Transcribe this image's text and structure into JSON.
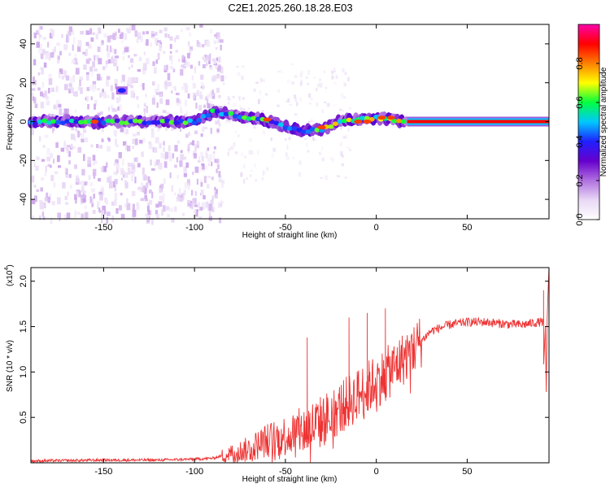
{
  "figure_title": "C2E1.2025.260.18.28.E03",
  "chart_data": [
    {
      "type": "heatmap",
      "name": "spectrogram",
      "xlabel": "Height of straight line (km)",
      "ylabel": "Frequency (Hz)",
      "xlim": [
        -190,
        95
      ],
      "ylim": [
        -50,
        50
      ],
      "xticks": [
        -150,
        -100,
        -50,
        0,
        50
      ],
      "yticks": [
        -40,
        -20,
        0,
        20,
        40
      ],
      "colorbar": {
        "label": "Normalized spectral amplitude",
        "range": [
          0,
          1
        ],
        "ticks": [
          "0.0",
          "0.2",
          "0.4",
          "0.6",
          "0.8"
        ],
        "tick_values": [
          0.0,
          0.2,
          0.4,
          0.6,
          0.8
        ],
        "colormap": [
          "#ffffff",
          "#e8d8f5",
          "#b070e0",
          "#6600cc",
          "#2020ff",
          "#00c8ff",
          "#00ff40",
          "#ffff00",
          "#ff8000",
          "#ff0000",
          "#ff00aa"
        ]
      },
      "ridge_track": [
        {
          "x": -190,
          "f": 0
        },
        {
          "x": -150,
          "f": 0
        },
        {
          "x": -120,
          "f": 0
        },
        {
          "x": -100,
          "f": 0
        },
        {
          "x": -90,
          "f": 5
        },
        {
          "x": -80,
          "f": 4
        },
        {
          "x": -70,
          "f": 2
        },
        {
          "x": -60,
          "f": 0
        },
        {
          "x": -50,
          "f": -3
        },
        {
          "x": -40,
          "f": -5
        },
        {
          "x": -30,
          "f": -4
        },
        {
          "x": -20,
          "f": 0
        },
        {
          "x": -10,
          "f": 1
        },
        {
          "x": 0,
          "f": 2
        },
        {
          "x": 10,
          "f": 1
        },
        {
          "x": 20,
          "f": 0
        },
        {
          "x": 95,
          "f": 0
        }
      ],
      "strong_band": {
        "x_start": 17,
        "x_end": 95,
        "f": 0,
        "amplitude": 1.0
      },
      "isolated_blob": {
        "x": -140,
        "f": 16,
        "amplitude": 0.4
      }
    },
    {
      "type": "line",
      "name": "snr",
      "xlabel": "Height of straight line (km)",
      "ylabel": "SNR (10 * v/v)",
      "y_multiplier": "(x10",
      "y_multiplier_exp": "4",
      "y_multiplier_close": ")",
      "xlim": [
        -190,
        95
      ],
      "ylim": [
        0,
        2.15
      ],
      "xticks": [
        -150,
        -100,
        -50,
        0,
        50
      ],
      "yticks": [
        "0.5",
        "1.0",
        "1.5",
        "2.0"
      ],
      "ytick_values": [
        0.5,
        1.0,
        1.5,
        2.0
      ],
      "line_color": "#ee3333",
      "series_trend": [
        {
          "x": -190,
          "y": 0.02
        },
        {
          "x": -150,
          "y": 0.03
        },
        {
          "x": -120,
          "y": 0.03
        },
        {
          "x": -100,
          "y": 0.04
        },
        {
          "x": -90,
          "y": 0.05
        },
        {
          "x": -80,
          "y": 0.1
        },
        {
          "x": -70,
          "y": 0.15
        },
        {
          "x": -60,
          "y": 0.25
        },
        {
          "x": -50,
          "y": 0.3
        },
        {
          "x": -40,
          "y": 0.35
        },
        {
          "x": -30,
          "y": 0.45
        },
        {
          "x": -20,
          "y": 0.6
        },
        {
          "x": -10,
          "y": 0.75
        },
        {
          "x": 0,
          "y": 0.9
        },
        {
          "x": 10,
          "y": 1.05
        },
        {
          "x": 20,
          "y": 1.25
        },
        {
          "x": 30,
          "y": 1.45
        },
        {
          "x": 40,
          "y": 1.52
        },
        {
          "x": 50,
          "y": 1.55
        },
        {
          "x": 60,
          "y": 1.55
        },
        {
          "x": 70,
          "y": 1.53
        },
        {
          "x": 80,
          "y": 1.52
        },
        {
          "x": 90,
          "y": 1.55
        }
      ],
      "spikes": [
        {
          "x": -38,
          "y": 1.38
        },
        {
          "x": -15,
          "y": 1.6
        },
        {
          "x": -5,
          "y": 1.65
        },
        {
          "x": 5,
          "y": 1.7
        },
        {
          "x": 92,
          "y": 1.9
        },
        {
          "x": 95,
          "y": 2.15
        }
      ]
    }
  ]
}
